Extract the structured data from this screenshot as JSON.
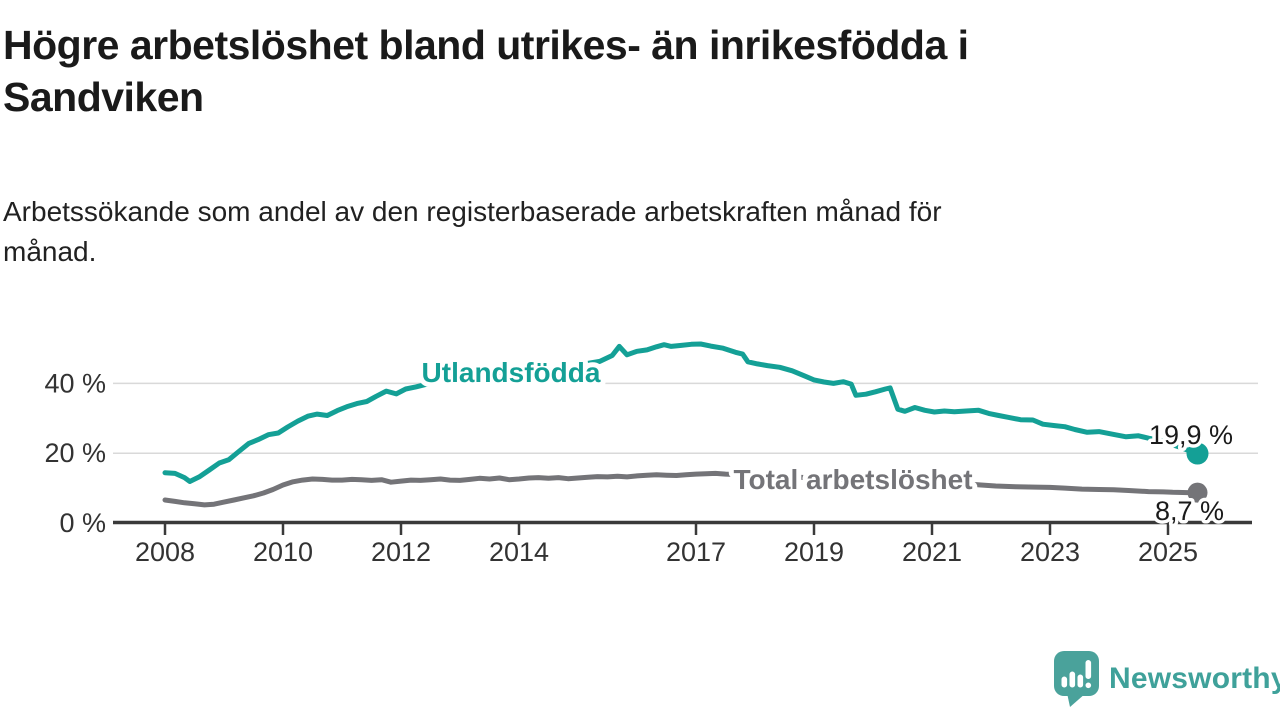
{
  "header": {
    "title": "Högre arbetslöshet bland utrikes- än inrikesfödda i\nSandviken",
    "subtitle": "Arbetssökande som andel av den registerbaserade arbetskraften månad för\nmånad."
  },
  "chart_data": {
    "type": "line",
    "title": "Högre arbetslöshet bland utrikes- än inrikesfödda i Sandviken",
    "subtitle": "Arbetssökande som andel av den registerbaserade arbetskraften månad för månad.",
    "unit": "%",
    "grid": true,
    "legend_position": "inline-labels",
    "x_axis": {
      "ticks": [
        2008,
        2010,
        2012,
        2014,
        2017,
        2019,
        2021,
        2023,
        2025
      ],
      "range": [
        2007.1,
        2026.5
      ]
    },
    "y_axis": {
      "ticks": [
        0,
        20,
        40
      ],
      "tick_labels": [
        "0 %",
        "20 %",
        "40 %"
      ],
      "range": [
        0,
        55
      ]
    },
    "colors": {
      "grid": "#d9d9d9",
      "axis": "#3a3a3a",
      "axis_text": "#333333",
      "value_text": "#1a1a1a"
    },
    "series": [
      {
        "name": "Utlandsfödda",
        "color": "#14a096",
        "end_value": 19.9,
        "end_label": "19,9 %",
        "points": [
          [
            2008.0,
            14.4
          ],
          [
            2008.17,
            14.2
          ],
          [
            2008.33,
            13.0
          ],
          [
            2008.42,
            11.9
          ],
          [
            2008.58,
            13.2
          ],
          [
            2008.75,
            15.2
          ],
          [
            2008.92,
            17.2
          ],
          [
            2009.08,
            18.1
          ],
          [
            2009.25,
            20.5
          ],
          [
            2009.42,
            22.8
          ],
          [
            2009.58,
            23.9
          ],
          [
            2009.75,
            25.3
          ],
          [
            2009.92,
            25.8
          ],
          [
            2010.08,
            27.5
          ],
          [
            2010.25,
            29.2
          ],
          [
            2010.42,
            30.6
          ],
          [
            2010.58,
            31.2
          ],
          [
            2010.75,
            30.8
          ],
          [
            2010.92,
            32.2
          ],
          [
            2011.08,
            33.3
          ],
          [
            2011.25,
            34.2
          ],
          [
            2011.42,
            34.8
          ],
          [
            2011.58,
            36.3
          ],
          [
            2011.75,
            37.8
          ],
          [
            2011.92,
            37.0
          ],
          [
            2012.08,
            38.4
          ],
          [
            2012.25,
            39.0
          ],
          [
            2012.42,
            39.7
          ],
          [
            2012.58,
            40.2
          ],
          [
            2012.75,
            41.0
          ],
          [
            2012.88,
            40.4
          ],
          [
            2013.08,
            40.9
          ],
          [
            2013.33,
            41.5
          ],
          [
            2013.58,
            42.0
          ],
          [
            2013.83,
            42.6
          ],
          [
            2014.08,
            43.1
          ],
          [
            2014.33,
            43.7
          ],
          [
            2014.58,
            44.3
          ],
          [
            2014.83,
            44.9
          ],
          [
            2015.08,
            45.5
          ],
          [
            2015.37,
            46.3
          ],
          [
            2015.58,
            48.0
          ],
          [
            2015.7,
            50.6
          ],
          [
            2015.83,
            48.2
          ],
          [
            2016.0,
            49.2
          ],
          [
            2016.17,
            49.6
          ],
          [
            2016.33,
            50.5
          ],
          [
            2016.46,
            51.1
          ],
          [
            2016.58,
            50.6
          ],
          [
            2016.75,
            50.9
          ],
          [
            2016.92,
            51.2
          ],
          [
            2017.08,
            51.3
          ],
          [
            2017.25,
            50.7
          ],
          [
            2017.46,
            50.1
          ],
          [
            2017.67,
            48.9
          ],
          [
            2017.79,
            48.4
          ],
          [
            2017.88,
            46.2
          ],
          [
            2018.04,
            45.6
          ],
          [
            2018.21,
            45.1
          ],
          [
            2018.42,
            44.6
          ],
          [
            2018.63,
            43.6
          ],
          [
            2018.83,
            42.2
          ],
          [
            2019.0,
            41.0
          ],
          [
            2019.17,
            40.4
          ],
          [
            2019.33,
            40.0
          ],
          [
            2019.5,
            40.5
          ],
          [
            2019.63,
            39.8
          ],
          [
            2019.71,
            36.6
          ],
          [
            2019.88,
            36.9
          ],
          [
            2020.04,
            37.6
          ],
          [
            2020.21,
            38.4
          ],
          [
            2020.29,
            38.7
          ],
          [
            2020.42,
            32.6
          ],
          [
            2020.54,
            32.0
          ],
          [
            2020.71,
            33.1
          ],
          [
            2020.88,
            32.3
          ],
          [
            2021.04,
            31.8
          ],
          [
            2021.21,
            32.1
          ],
          [
            2021.38,
            31.9
          ],
          [
            2021.58,
            32.1
          ],
          [
            2021.79,
            32.3
          ],
          [
            2021.96,
            31.4
          ],
          [
            2022.13,
            30.8
          ],
          [
            2022.29,
            30.3
          ],
          [
            2022.5,
            29.6
          ],
          [
            2022.71,
            29.5
          ],
          [
            2022.88,
            28.3
          ],
          [
            2023.08,
            27.9
          ],
          [
            2023.25,
            27.6
          ],
          [
            2023.42,
            26.8
          ],
          [
            2023.63,
            26.0
          ],
          [
            2023.83,
            26.2
          ],
          [
            2024.08,
            25.4
          ],
          [
            2024.29,
            24.7
          ],
          [
            2024.5,
            25.0
          ],
          [
            2024.67,
            24.3
          ],
          [
            2024.83,
            23.8
          ],
          [
            2025.0,
            23.2
          ],
          [
            2025.08,
            22.4
          ],
          [
            2025.25,
            21.4
          ],
          [
            2025.42,
            20.3
          ],
          [
            2025.5,
            19.9
          ]
        ]
      },
      {
        "name": "Total arbetslöshet",
        "color": "#747478",
        "end_value": 8.7,
        "end_label": "8,7 %",
        "points": [
          [
            2008.0,
            6.6
          ],
          [
            2008.17,
            6.2
          ],
          [
            2008.33,
            5.8
          ],
          [
            2008.5,
            5.5
          ],
          [
            2008.67,
            5.2
          ],
          [
            2008.83,
            5.4
          ],
          [
            2009.0,
            6.0
          ],
          [
            2009.17,
            6.6
          ],
          [
            2009.33,
            7.2
          ],
          [
            2009.5,
            7.8
          ],
          [
            2009.67,
            8.6
          ],
          [
            2009.83,
            9.6
          ],
          [
            2010.0,
            10.9
          ],
          [
            2010.17,
            11.8
          ],
          [
            2010.33,
            12.3
          ],
          [
            2010.5,
            12.6
          ],
          [
            2010.67,
            12.5
          ],
          [
            2010.83,
            12.3
          ],
          [
            2011.0,
            12.3
          ],
          [
            2011.17,
            12.5
          ],
          [
            2011.33,
            12.4
          ],
          [
            2011.5,
            12.2
          ],
          [
            2011.67,
            12.4
          ],
          [
            2011.83,
            11.7
          ],
          [
            2012.0,
            12.0
          ],
          [
            2012.17,
            12.3
          ],
          [
            2012.33,
            12.2
          ],
          [
            2012.5,
            12.4
          ],
          [
            2012.67,
            12.6
          ],
          [
            2012.83,
            12.3
          ],
          [
            2013.0,
            12.2
          ],
          [
            2013.17,
            12.5
          ],
          [
            2013.33,
            12.8
          ],
          [
            2013.5,
            12.6
          ],
          [
            2013.67,
            12.9
          ],
          [
            2013.83,
            12.4
          ],
          [
            2014.0,
            12.6
          ],
          [
            2014.17,
            12.9
          ],
          [
            2014.33,
            13.0
          ],
          [
            2014.5,
            12.8
          ],
          [
            2014.67,
            13.0
          ],
          [
            2014.83,
            12.7
          ],
          [
            2015.0,
            12.9
          ],
          [
            2015.17,
            13.1
          ],
          [
            2015.33,
            13.3
          ],
          [
            2015.5,
            13.2
          ],
          [
            2015.67,
            13.4
          ],
          [
            2015.83,
            13.2
          ],
          [
            2016.0,
            13.5
          ],
          [
            2016.17,
            13.7
          ],
          [
            2016.33,
            13.8
          ],
          [
            2016.5,
            13.7
          ],
          [
            2016.67,
            13.6
          ],
          [
            2016.83,
            13.8
          ],
          [
            2017.0,
            14.0
          ],
          [
            2017.17,
            14.1
          ],
          [
            2017.33,
            14.2
          ],
          [
            2017.5,
            14.0
          ],
          [
            2017.67,
            13.9
          ],
          [
            2017.83,
            13.8
          ],
          [
            2018.0,
            13.7
          ],
          [
            2018.25,
            13.5
          ],
          [
            2018.5,
            13.3
          ],
          [
            2018.75,
            13.1
          ],
          [
            2019.0,
            12.9
          ],
          [
            2019.25,
            12.7
          ],
          [
            2019.5,
            12.4
          ],
          [
            2019.75,
            12.2
          ],
          [
            2020.0,
            12.1
          ],
          [
            2020.25,
            12.4
          ],
          [
            2020.5,
            12.6
          ],
          [
            2020.75,
            12.3
          ],
          [
            2021.0,
            12.0
          ],
          [
            2021.25,
            11.6
          ],
          [
            2021.42,
            11.4
          ],
          [
            2021.58,
            11.2
          ],
          [
            2021.83,
            10.9
          ],
          [
            2022.08,
            10.6
          ],
          [
            2022.42,
            10.4
          ],
          [
            2022.75,
            10.3
          ],
          [
            2023.0,
            10.2
          ],
          [
            2023.25,
            10.0
          ],
          [
            2023.54,
            9.7
          ],
          [
            2023.83,
            9.6
          ],
          [
            2024.08,
            9.5
          ],
          [
            2024.33,
            9.3
          ],
          [
            2024.67,
            9.0
          ],
          [
            2024.92,
            8.9
          ],
          [
            2025.08,
            8.8
          ],
          [
            2025.33,
            8.7
          ],
          [
            2025.5,
            8.7
          ]
        ]
      }
    ]
  },
  "footer": {
    "brand": "Newsworthy",
    "brand_color": "#3fa19a"
  }
}
